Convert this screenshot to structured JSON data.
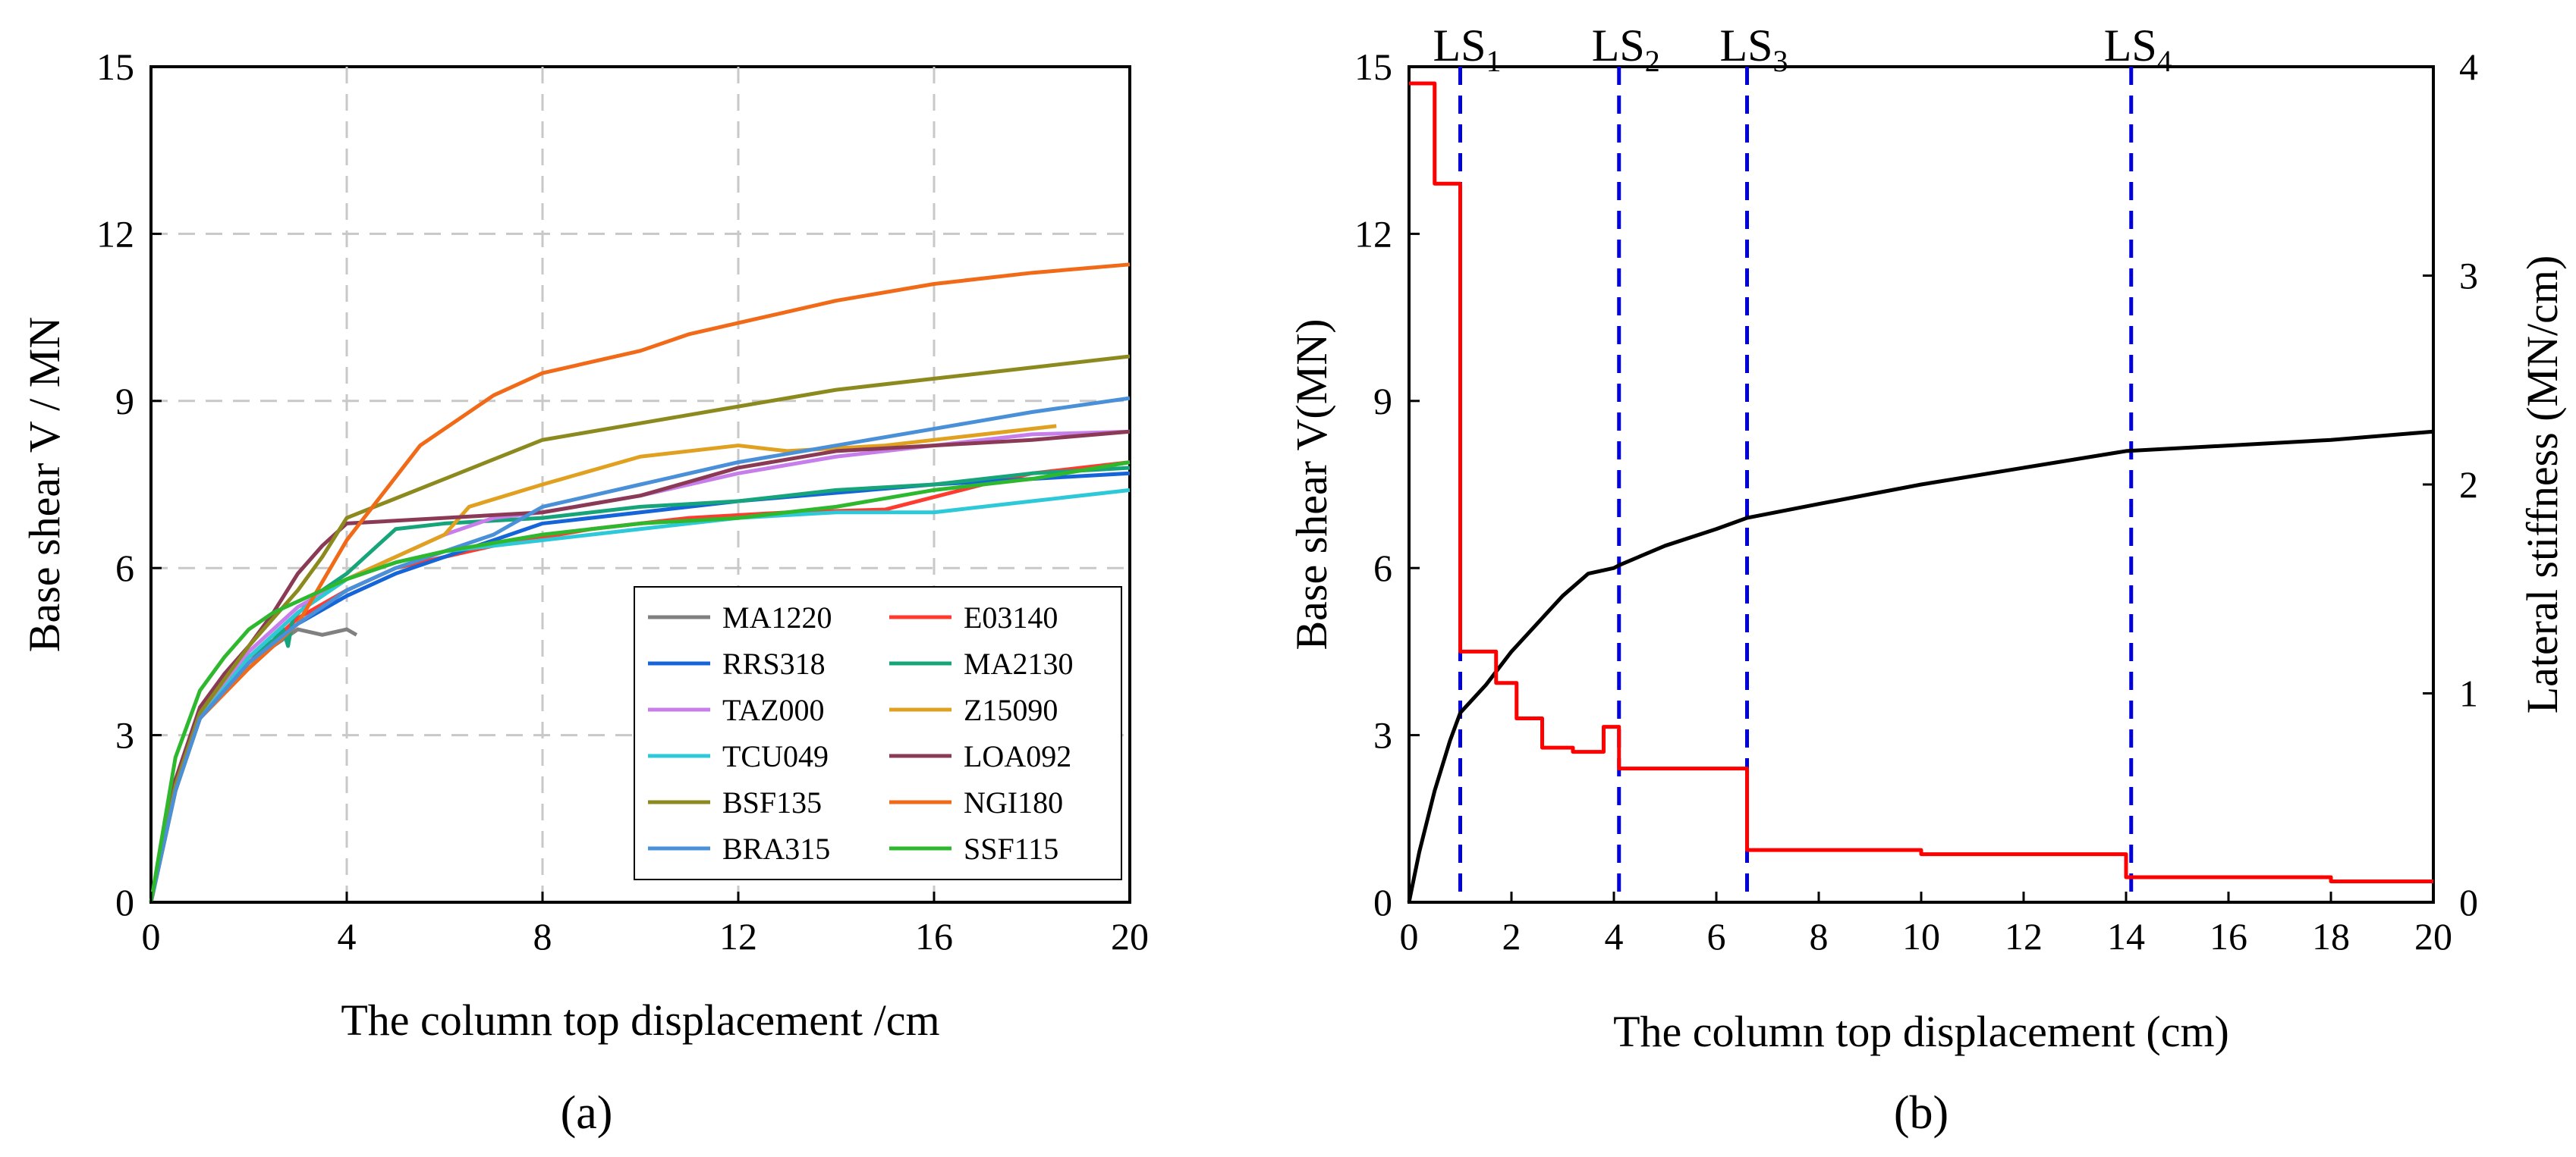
{
  "chart_data": [
    {
      "type": "line",
      "panel_label": "(a)",
      "xlabel": "The column top displacement /cm",
      "ylabel": "Base shear V / MN",
      "xlim": [
        0,
        20
      ],
      "ylim": [
        0,
        15
      ],
      "xticks": [
        0,
        4,
        8,
        12,
        16,
        20
      ],
      "yticks": [
        0,
        3,
        6,
        9,
        12,
        15
      ],
      "grid": true,
      "legend_position": "bottom-right",
      "series": [
        {
          "name": "MA1220",
          "color": "#808080",
          "x": [
            0,
            0.5,
            1,
            1.5,
            2,
            2.5,
            3,
            3.5,
            4,
            4.2
          ],
          "y": [
            0,
            2.1,
            3.4,
            3.9,
            4.2,
            4.6,
            4.9,
            4.8,
            4.9,
            4.8
          ]
        },
        {
          "name": "E03140",
          "color": "#ff3b30",
          "x": [
            0,
            0.5,
            1,
            1.5,
            2,
            3,
            4,
            5,
            7,
            9,
            11,
            13,
            15,
            17,
            18,
            19,
            20
          ],
          "y": [
            0,
            2.2,
            3.4,
            3.8,
            4.3,
            5.1,
            5.6,
            6.0,
            6.4,
            6.7,
            6.9,
            7.0,
            7.05,
            7.5,
            7.7,
            7.8,
            7.9
          ]
        },
        {
          "name": "RRS318",
          "color": "#1565d8",
          "x": [
            0,
            0.5,
            1,
            2,
            3,
            4,
            5,
            6,
            7,
            8,
            10,
            12,
            14,
            16,
            18,
            20
          ],
          "y": [
            0,
            2.0,
            3.4,
            4.3,
            5.0,
            5.5,
            5.9,
            6.2,
            6.5,
            6.8,
            7.0,
            7.2,
            7.35,
            7.5,
            7.6,
            7.7
          ]
        },
        {
          "name": "MA2130",
          "color": "#16a47a",
          "x": [
            0,
            0.5,
            1,
            1.5,
            2,
            2.5,
            2.7,
            2.8,
            2.9,
            3.5,
            4,
            5,
            6,
            8,
            10,
            12,
            14,
            16,
            18,
            20
          ],
          "y": [
            0,
            2.1,
            3.3,
            4.0,
            4.4,
            4.7,
            4.9,
            4.6,
            5.1,
            5.6,
            5.9,
            6.7,
            6.8,
            6.9,
            7.1,
            7.2,
            7.4,
            7.5,
            7.7,
            7.8
          ]
        },
        {
          "name": "TAZ000",
          "color": "#c77dea",
          "x": [
            0,
            0.5,
            1,
            2,
            3,
            4,
            5,
            6,
            7,
            8,
            10,
            12,
            14,
            16,
            18,
            20
          ],
          "y": [
            0,
            2.1,
            3.4,
            4.5,
            5.3,
            5.8,
            6.2,
            6.6,
            6.9,
            7.0,
            7.3,
            7.7,
            8.0,
            8.2,
            8.4,
            8.45
          ]
        },
        {
          "name": "Z15090",
          "color": "#e0a020",
          "x": [
            0,
            0.5,
            1,
            2,
            3,
            4,
            5,
            6,
            6.5,
            8,
            10,
            12,
            13,
            15,
            17,
            18.5
          ],
          "y": [
            0,
            2.0,
            3.3,
            4.4,
            5.2,
            5.8,
            6.2,
            6.6,
            7.1,
            7.5,
            8.0,
            8.2,
            8.1,
            8.2,
            8.4,
            8.55
          ]
        },
        {
          "name": "TCU049",
          "color": "#2ec9d8",
          "x": [
            0,
            0.5,
            1,
            2,
            3,
            4,
            5,
            6,
            8,
            10,
            12,
            14,
            16,
            18,
            20
          ],
          "y": [
            0,
            2.0,
            3.3,
            4.4,
            5.2,
            5.8,
            6.1,
            6.3,
            6.5,
            6.7,
            6.9,
            7.0,
            7.0,
            7.2,
            7.4
          ]
        },
        {
          "name": "LOA092",
          "color": "#8b3a55",
          "x": [
            0,
            0.5,
            1,
            1.5,
            2,
            2.5,
            3.0,
            3.5,
            4,
            6,
            8,
            10,
            12,
            14,
            16,
            18,
            20
          ],
          "y": [
            0,
            2.2,
            3.5,
            4.1,
            4.6,
            5.2,
            5.9,
            6.4,
            6.8,
            6.9,
            7.0,
            7.3,
            7.8,
            8.1,
            8.2,
            8.3,
            8.45
          ]
        },
        {
          "name": "BSF135",
          "color": "#8c8a1e",
          "x": [
            0,
            0.5,
            1,
            2,
            3,
            3.5,
            4,
            6,
            8,
            10,
            12,
            13,
            14,
            16,
            18,
            20
          ],
          "y": [
            0,
            2.1,
            3.4,
            4.6,
            5.6,
            6.2,
            6.9,
            7.6,
            8.3,
            8.6,
            8.9,
            9.05,
            9.2,
            9.4,
            9.6,
            9.8
          ]
        },
        {
          "name": "NGI180",
          "color": "#f06a18",
          "x": [
            0,
            0.5,
            1,
            2,
            3,
            4,
            5.5,
            7,
            8,
            10,
            11,
            12,
            14,
            16,
            18,
            20
          ],
          "y": [
            0,
            2.0,
            3.3,
            4.2,
            5.0,
            6.5,
            8.2,
            9.1,
            9.5,
            9.9,
            10.2,
            10.4,
            10.8,
            11.1,
            11.3,
            11.45
          ]
        },
        {
          "name": "BRA315",
          "color": "#4a90d8",
          "x": [
            0,
            0.5,
            1,
            2,
            3,
            4,
            5,
            6,
            7,
            8,
            10,
            12,
            14,
            16,
            18,
            20
          ],
          "y": [
            0,
            2.0,
            3.3,
            4.3,
            5.0,
            5.6,
            6.0,
            6.3,
            6.6,
            7.1,
            7.5,
            7.9,
            8.2,
            8.5,
            8.8,
            9.05
          ]
        },
        {
          "name": "SSF115",
          "color": "#2eb82e",
          "x": [
            0,
            0.5,
            1,
            1.5,
            2,
            2.5,
            3,
            4,
            5,
            6,
            8,
            10,
            12,
            14,
            16,
            18,
            20
          ],
          "y": [
            0,
            2.6,
            3.8,
            4.4,
            4.9,
            5.2,
            5.4,
            5.8,
            6.1,
            6.3,
            6.6,
            6.8,
            6.9,
            7.1,
            7.4,
            7.6,
            7.9
          ]
        }
      ]
    },
    {
      "type": "line",
      "panel_label": "(b)",
      "xlabel": "The column top displacement (cm)",
      "ylabel": "Base shear V(MN)",
      "ylabel_right": "Lateral stiffness (MN/cm)",
      "xlim": [
        0,
        20
      ],
      "ylim": [
        0,
        15
      ],
      "ylim_right": [
        0,
        4
      ],
      "xticks": [
        0,
        2,
        4,
        6,
        8,
        10,
        12,
        14,
        16,
        18,
        20
      ],
      "yticks": [
        0,
        3,
        6,
        9,
        12,
        15
      ],
      "yticks_right": [
        0,
        1,
        2,
        3,
        4
      ],
      "grid": false,
      "series": [
        {
          "name": "Base shear",
          "color": "#000000",
          "axis": "left",
          "step": false,
          "x": [
            0,
            0.2,
            0.5,
            0.8,
            1.0,
            1.5,
            2.0,
            2.5,
            3.0,
            3.5,
            4.0,
            4.1,
            5.0,
            6.0,
            6.6,
            8.0,
            10.0,
            12.0,
            14.0,
            16.0,
            18.0,
            20.0
          ],
          "y": [
            0,
            0.9,
            2.0,
            2.9,
            3.4,
            3.9,
            4.5,
            5.0,
            5.5,
            5.9,
            6.0,
            6.05,
            6.4,
            6.7,
            6.9,
            7.15,
            7.5,
            7.8,
            8.1,
            8.2,
            8.3,
            8.45
          ]
        },
        {
          "name": "Lateral stiffness",
          "color": "#ff0000",
          "axis": "right",
          "step": true,
          "x": [
            0,
            0.5,
            1.0,
            1.7,
            2.1,
            2.6,
            3.2,
            3.8,
            4.1,
            6.6,
            10.0,
            14.0,
            18.0,
            20.0
          ],
          "y": [
            3.92,
            3.44,
            1.2,
            1.05,
            0.88,
            0.74,
            0.72,
            0.84,
            0.64,
            0.25,
            0.23,
            0.12,
            0.1,
            0.1
          ]
        }
      ],
      "annotations": [
        {
          "label": "LS",
          "sub": "1",
          "x": 1.0
        },
        {
          "label": "LS",
          "sub": "2",
          "x": 4.1
        },
        {
          "label": "LS",
          "sub": "3",
          "x": 6.6
        },
        {
          "label": "LS",
          "sub": "4",
          "x": 14.1
        }
      ],
      "annotation_color": "#0000dd"
    }
  ]
}
